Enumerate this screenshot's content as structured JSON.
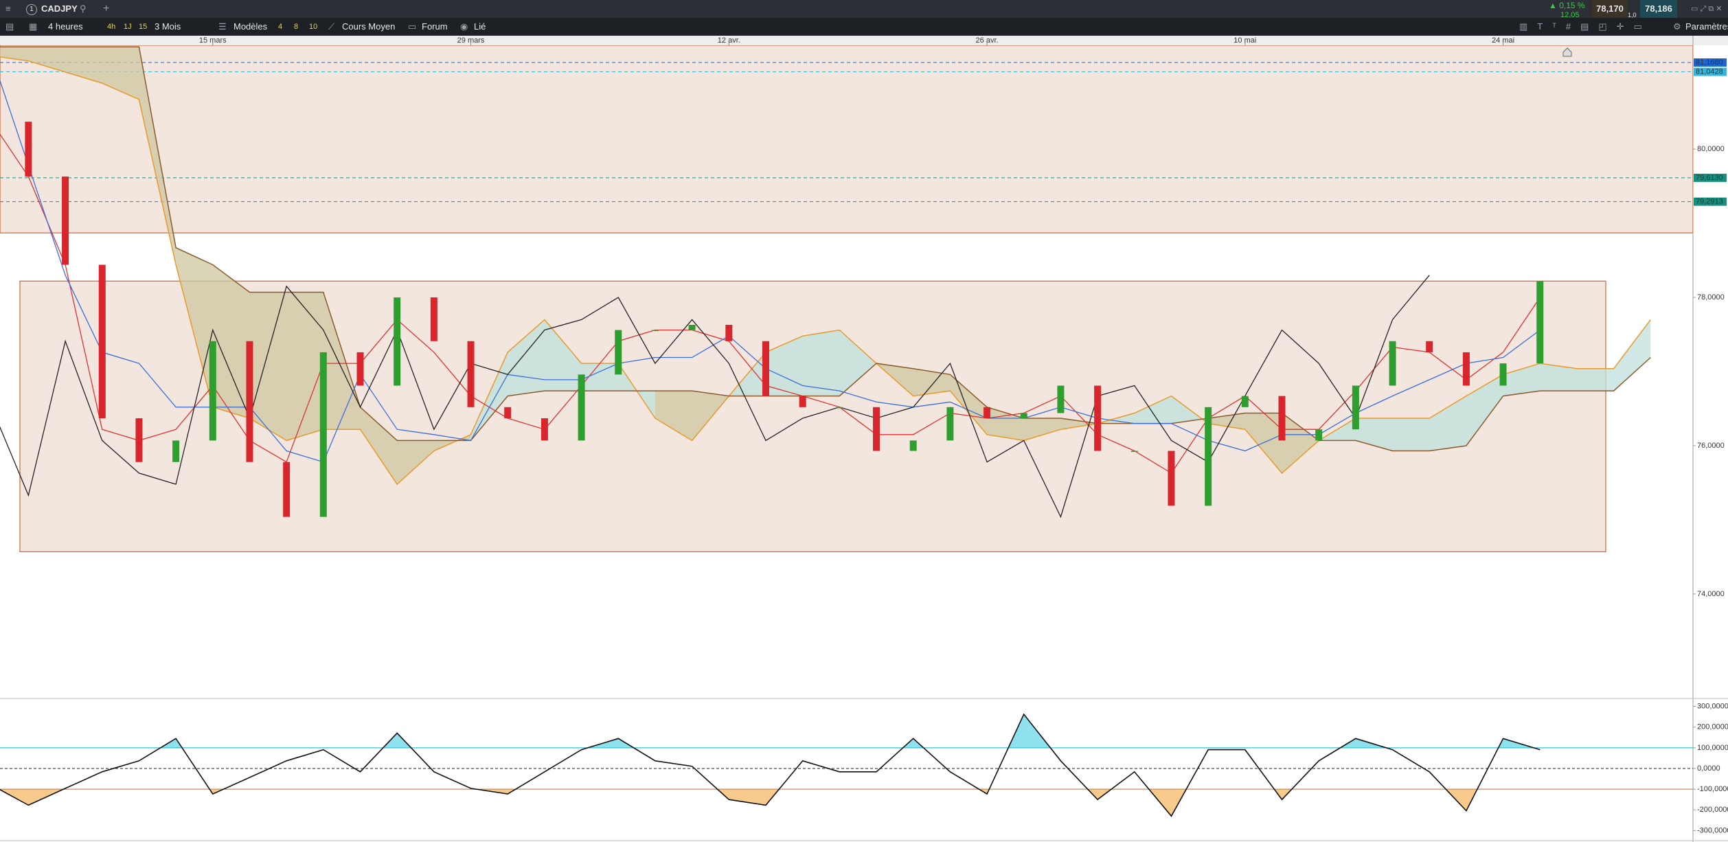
{
  "header": {
    "tab_number": "1",
    "symbol": "CADJPY",
    "timeframe": "4 heures",
    "quick_timeframes": [
      "4h",
      "1J",
      "15"
    ],
    "period": "3 Mois",
    "templates": "Modèles",
    "template_slots": [
      "4",
      "8",
      "10"
    ],
    "average_price": "Cours Moyen",
    "forum": "Forum",
    "link": "Lié",
    "settings": "Paramètres",
    "change": "▲ 0,15 %",
    "change_points": "12,05",
    "bid": "78,170",
    "ask": "78,186",
    "spread": "1,0"
  },
  "chart_data": [
    {
      "type": "candlestick",
      "categories": [
        null,
        null,
        null,
        null,
        null,
        null,
        "15 mars",
        null,
        null,
        null,
        null,
        null,
        null,
        "29 mars",
        null,
        null,
        null,
        null,
        null,
        null,
        "12 avr.",
        null,
        null,
        null,
        null,
        null,
        null,
        "26 avr.",
        null,
        null,
        null,
        null,
        null,
        null,
        "10 mai",
        null,
        null,
        null,
        null,
        null,
        null,
        "24 mai",
        null,
        null,
        null,
        null
      ],
      "values": [
        80.37,
        79.63,
        78.44,
        76.37,
        75.78,
        76.07,
        77.41,
        75.78,
        75.04,
        77.26,
        76.81,
        78.0,
        77.41,
        76.52,
        76.37,
        76.07,
        76.96,
        77.56,
        77.56,
        77.63,
        77.41,
        76.67,
        76.52,
        76.52,
        75.93,
        76.07,
        76.52,
        76.37,
        76.44,
        76.81,
        75.93,
        75.93,
        75.19,
        76.52,
        76.67,
        76.07,
        76.22,
        76.81,
        77.41,
        77.26,
        76.81,
        77.11,
        78.22,
        null,
        null,
        null
      ],
      "up_color": "#2e9e2e",
      "down_color": "#d9262c",
      "series": [
        {
          "color": "#e0312f",
          "values": [
            80.37,
            79.63,
            78.44,
            76.22,
            76.07,
            76.22,
            76.81,
            76.07,
            75.78,
            77.11,
            77.11,
            77.7,
            77.26,
            76.67,
            76.37,
            76.22,
            76.81,
            77.41,
            77.56,
            77.56,
            77.41,
            76.81,
            76.67,
            76.52,
            76.15,
            76.15,
            76.44,
            76.37,
            76.44,
            76.67,
            76.15,
            75.93,
            75.63,
            76.37,
            76.67,
            76.22,
            76.22,
            76.74,
            77.33,
            77.26,
            76.89,
            77.26,
            78.0,
            null,
            null,
            null
          ]
        },
        {
          "color": "#3a6fd8",
          "values": [
            81.26,
            79.78,
            78.3,
            77.26,
            77.11,
            76.52,
            76.52,
            76.52,
            75.93,
            75.78,
            76.96,
            76.22,
            76.15,
            76.07,
            76.96,
            76.89,
            76.89,
            77.11,
            77.19,
            77.19,
            77.48,
            77.04,
            76.81,
            76.74,
            76.59,
            76.52,
            76.59,
            76.37,
            76.37,
            76.52,
            76.37,
            76.3,
            76.3,
            76.07,
            75.93,
            76.15,
            76.15,
            76.44,
            76.67,
            76.89,
            77.11,
            77.19,
            77.56,
            null,
            null,
            null
          ]
        },
        {
          "color": "#222222",
          "values": [
            76.52,
            75.33,
            77.41,
            76.07,
            75.63,
            75.48,
            77.56,
            76.37,
            78.15,
            77.56,
            76.52,
            77.56,
            76.22,
            77.11,
            76.96,
            77.56,
            77.7,
            78.0,
            77.11,
            77.7,
            77.11,
            76.07,
            76.37,
            76.52,
            76.37,
            76.52,
            77.11,
            75.78,
            76.07,
            75.04,
            76.67,
            76.81,
            76.07,
            75.78,
            76.67,
            77.56,
            77.11,
            76.37,
            77.7,
            78.3,
            null,
            null,
            null,
            null,
            null,
            null
          ]
        }
      ],
      "cloud": [
        {
          "color": "#e89a2a",
          "values": [
            81.26,
            81.19,
            81.04,
            80.89,
            80.67,
            78.44,
            76.52,
            76.37,
            76.07,
            76.22,
            76.22,
            75.48,
            75.93,
            76.15,
            77.26,
            77.7,
            77.11,
            77.11,
            76.37,
            76.07,
            76.67,
            77.26,
            77.48,
            77.56,
            77.11,
            76.67,
            76.74,
            76.15,
            76.07,
            76.22,
            76.3,
            76.44,
            76.67,
            76.3,
            76.22,
            75.63,
            76.07,
            76.37,
            76.37,
            76.37,
            76.67,
            76.96,
            77.11,
            77.04,
            77.04,
            77.7
          ]
        },
        {
          "color": "#8b5a2b",
          "values": [
            81.38,
            81.38,
            81.38,
            81.38,
            81.38,
            78.67,
            78.44,
            78.07,
            78.07,
            78.07,
            76.52,
            76.07,
            76.07,
            76.07,
            76.67,
            76.74,
            76.74,
            76.74,
            76.74,
            76.74,
            76.67,
            76.67,
            76.67,
            76.67,
            77.11,
            77.04,
            76.96,
            76.52,
            76.37,
            76.37,
            76.3,
            76.3,
            76.3,
            76.37,
            76.44,
            76.44,
            76.07,
            76.07,
            75.93,
            75.93,
            76.0,
            76.67,
            76.74,
            76.74,
            76.74,
            77.19
          ]
        }
      ],
      "cloud_fill_up": "#bfe0dc",
      "cloud_fill_down": "#cfc7a0",
      "zones": [
        {
          "from": 78.87,
          "to": 81.4
        },
        {
          "from": 74.57,
          "to": 78.22
        }
      ],
      "zone_fill": "#f3e6df",
      "zone_border": "#c8683a",
      "levels": [
        {
          "value": 81.168,
          "label": "81,1680",
          "color": "#1f66d1"
        },
        {
          "value": 81.0428,
          "label": "81,0428",
          "color": "#2fb8e0"
        },
        {
          "value": 79.613,
          "label": "79,6130",
          "color": "#15907f"
        },
        {
          "value": 79.2913,
          "label": "79,2913",
          "color": "#15907f"
        }
      ],
      "ylim": [
        72.6,
        81.4
      ],
      "yticks": [
        {
          "value": 80,
          "label": "80,0000"
        },
        {
          "value": 78,
          "label": "78,0000"
        },
        {
          "value": 76,
          "label": "76,0000"
        },
        {
          "value": 74,
          "label": "74,0000"
        }
      ]
    },
    {
      "type": "line",
      "values": [
        -80,
        -177,
        -96,
        -16,
        37,
        145,
        -123,
        -43,
        37,
        91,
        -16,
        171,
        -16,
        -96,
        -123,
        -16,
        91,
        145,
        37,
        11,
        -150,
        -177,
        37,
        -16,
        -16,
        145,
        -16,
        -123,
        262,
        37,
        -150,
        -16,
        -230,
        91,
        91,
        -150,
        37,
        145,
        91,
        -16,
        -204,
        145,
        91,
        null,
        null,
        null
      ],
      "color": "#111111",
      "levels": [
        {
          "value": 100,
          "color": "#35c2d4",
          "fill": "#8fe1ee"
        },
        {
          "value": -100,
          "color": "#c98d55",
          "fill": "#f8ca8c"
        }
      ],
      "zero_line": true,
      "ylim": [
        -345,
        335
      ],
      "yticks": [
        {
          "value": 300,
          "label": "300,0000"
        },
        {
          "value": 200,
          "label": "200,0000"
        },
        {
          "value": 100,
          "label": "100,0000"
        },
        {
          "value": 0,
          "label": "0,0000"
        },
        {
          "value": -100,
          "label": "-100,0000"
        },
        {
          "value": -200,
          "label": "-200,0000"
        },
        {
          "value": -300,
          "label": "-300,0000"
        }
      ]
    }
  ]
}
